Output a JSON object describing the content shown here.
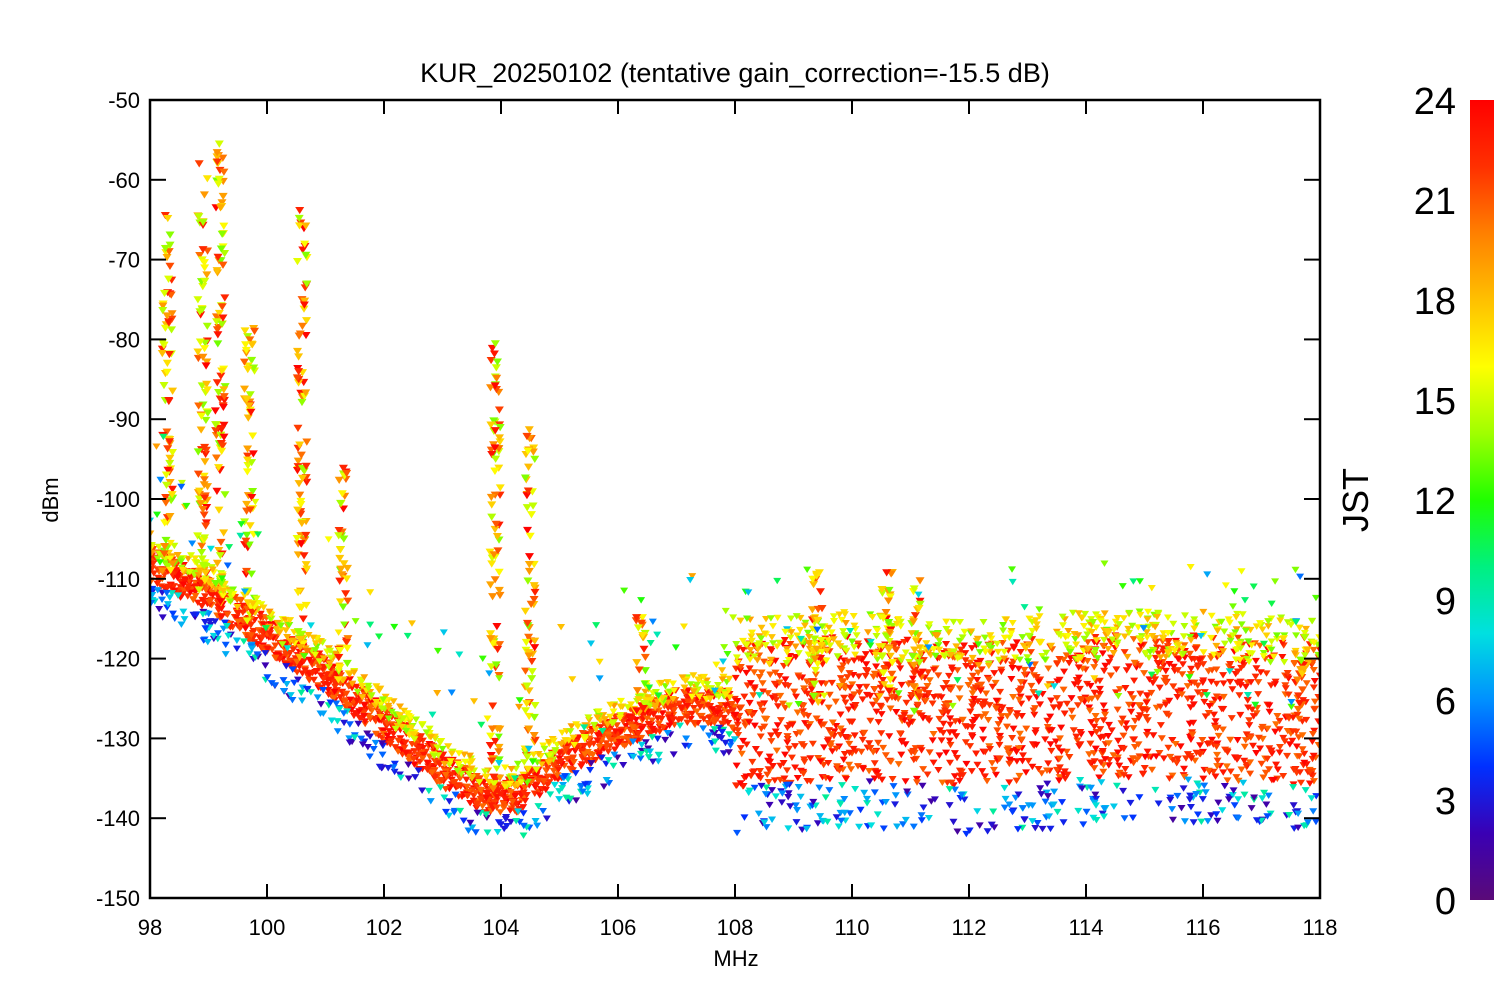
{
  "chart_data": {
    "type": "scatter",
    "title": "KUR_20250102 (tentative gain_correction=-15.5 dB)",
    "xlabel": "MHz",
    "ylabel": "dBm",
    "xlim": [
      98,
      118
    ],
    "ylim": [
      -150,
      -50
    ],
    "x_ticks": [
      "98",
      "100",
      "102",
      "104",
      "106",
      "108",
      "110",
      "112",
      "114",
      "116",
      "118"
    ],
    "y_ticks": [
      "-50",
      "-60",
      "-70",
      "-80",
      "-90",
      "-100",
      "-110",
      "-120",
      "-130",
      "-140",
      "-150"
    ],
    "grid": false,
    "colorbar": {
      "title": "JST",
      "range": [
        0,
        24
      ],
      "ticks": [
        "24",
        "21",
        "18",
        "15",
        "12",
        "9",
        "6",
        "3",
        "0"
      ],
      "colormap": [
        "#5a0a78",
        "#3a00b4",
        "#0030ff",
        "#0090ff",
        "#00e0e0",
        "#00f080",
        "#20ff00",
        "#a0ff00",
        "#ffff00",
        "#ffc000",
        "#ff8000",
        "#ff3000",
        "#ff0000"
      ]
    },
    "series": [
      {
        "description_kind": "noise floor (late hours)",
        "points": [
          [
            98,
            -108
          ],
          [
            99,
            -112
          ],
          [
            100,
            -117
          ],
          [
            101,
            -122
          ],
          [
            102,
            -128
          ],
          [
            103,
            -134
          ],
          [
            103.7,
            -137
          ],
          [
            104.3,
            -137
          ],
          [
            105,
            -133
          ],
          [
            106,
            -129
          ],
          [
            107,
            -126
          ],
          [
            107.9,
            -126
          ],
          [
            108,
            -127
          ],
          [
            110,
            -126
          ],
          [
            112,
            -127
          ],
          [
            114,
            -126
          ],
          [
            116,
            -126
          ],
          [
            118,
            -127
          ]
        ]
      },
      {
        "description_kind": "strong carriers (peak dBm by frequency MHz)",
        "points": [
          [
            98.3,
            -62
          ],
          [
            98.9,
            -57
          ],
          [
            99.2,
            -55
          ],
          [
            99.7,
            -78
          ],
          [
            100.6,
            -63
          ],
          [
            101.3,
            -96
          ],
          [
            103.9,
            -80
          ],
          [
            104.5,
            -90
          ],
          [
            106.4,
            -113
          ],
          [
            109.4,
            -109
          ],
          [
            110.6,
            -109
          ],
          [
            111.1,
            -110
          ],
          [
            117.7,
            -117
          ]
        ]
      }
    ]
  }
}
